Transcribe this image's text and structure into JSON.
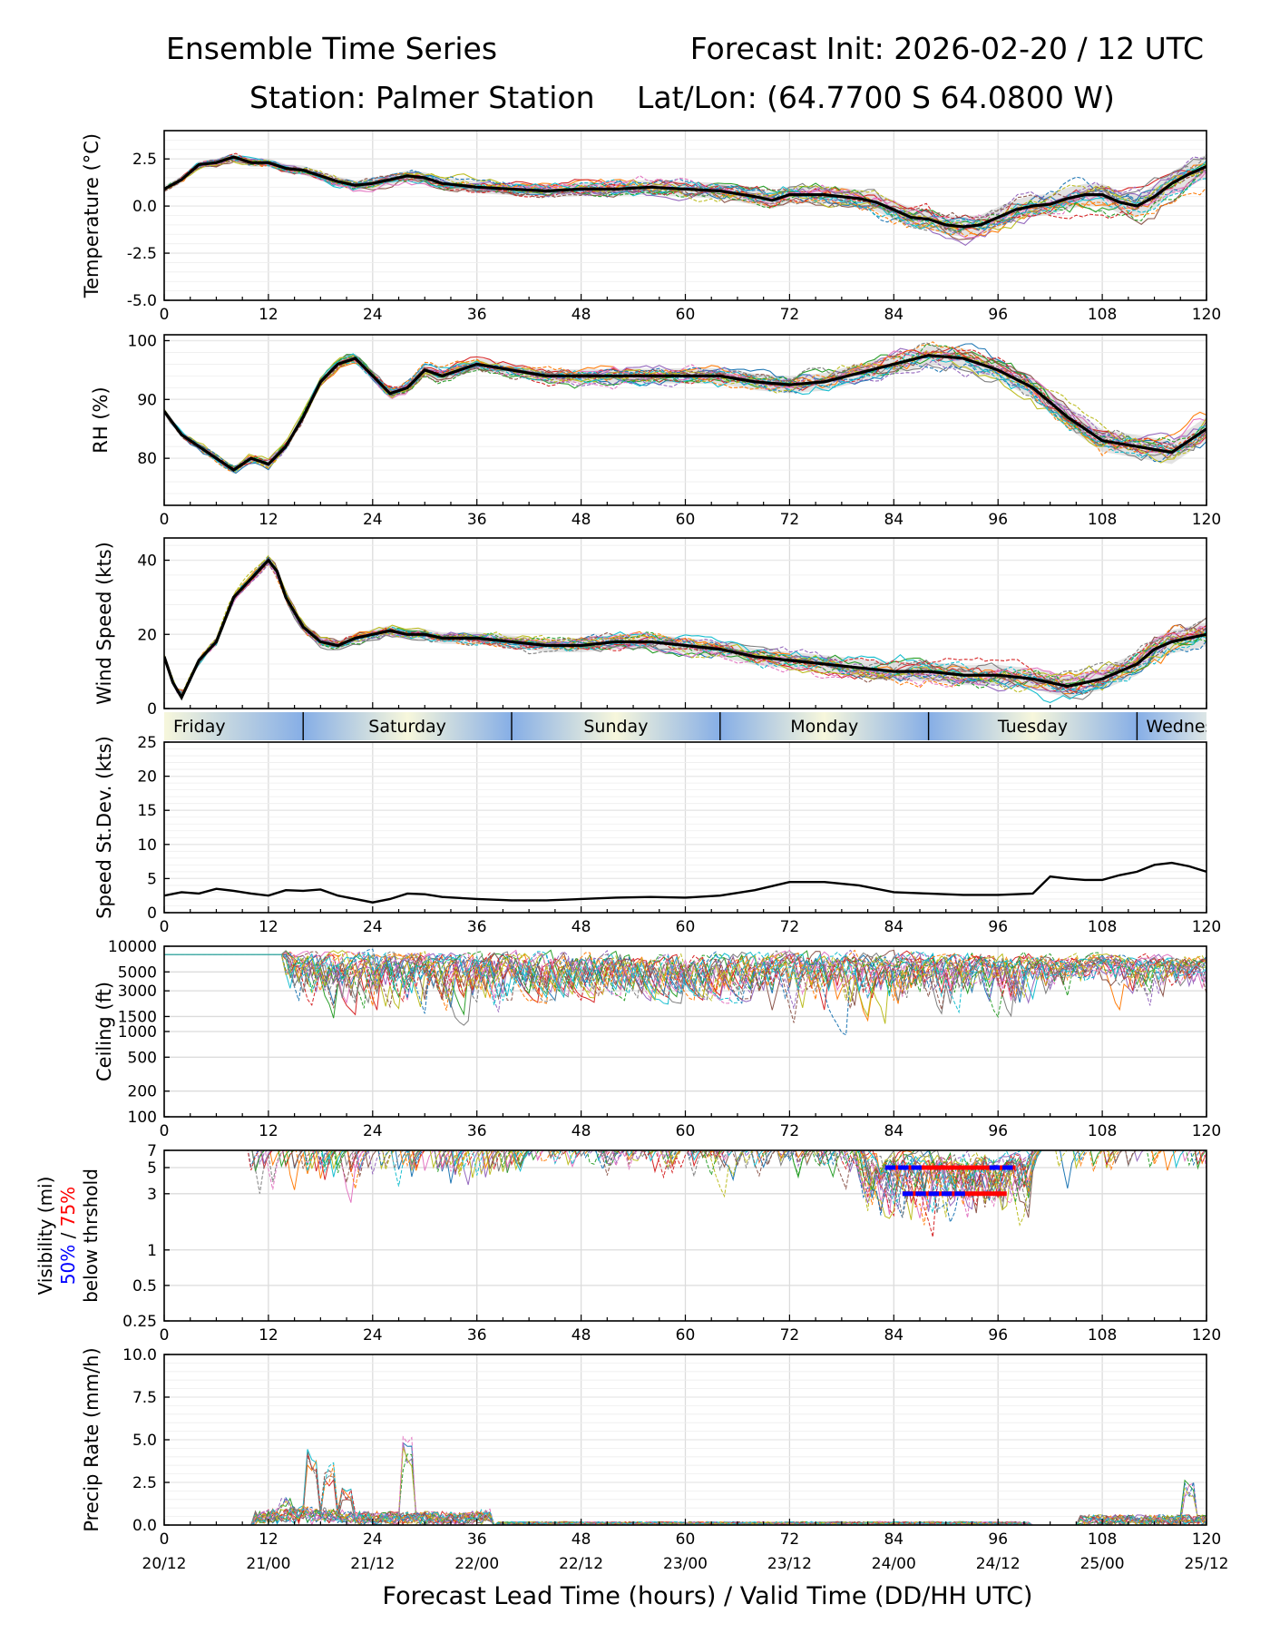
{
  "header": {
    "title_left": "Ensemble Time Series",
    "title_right": "Forecast Init: 2026-02-20 / 12 UTC",
    "station": "Station: Palmer Station",
    "latlon": "Lat/Lon: (64.7700 S 64.0800 W)"
  },
  "colors": {
    "mean": "#000000",
    "grid": "#dcdcdc",
    "spread": "#b0b0b0",
    "vis_50": "#0000ff",
    "vis_75": "#ff0000",
    "members": [
      "#1f77b4",
      "#ff7f0e",
      "#2ca02c",
      "#d62728",
      "#9467bd",
      "#8c564b",
      "#e377c2",
      "#7f7f7f",
      "#bcbd22",
      "#17becf"
    ]
  },
  "x_axis": {
    "label": "Forecast Lead Time (hours) / Valid Time (DD/HH UTC)",
    "ticks": [
      "0",
      "12",
      "24",
      "36",
      "48",
      "60",
      "72",
      "84",
      "96",
      "108",
      "120"
    ],
    "valid_times": [
      "20/12",
      "21/00",
      "21/12",
      "22/00",
      "22/12",
      "23/00",
      "23/12",
      "24/00",
      "24/12",
      "25/00",
      "25/12"
    ]
  },
  "day_band": {
    "labels": [
      "Friday",
      "Saturday",
      "Sunday",
      "Monday",
      "Tuesday",
      "Wednesday"
    ]
  },
  "chart_data": [
    {
      "id": "temperature",
      "type": "line",
      "ylabel": "Temperature (°C)",
      "ylim": [
        -5,
        4
      ],
      "yticks": [
        "-5.0",
        "-2.5",
        "0.0",
        "2.5"
      ],
      "ytick_values": [
        -5,
        -2.5,
        0,
        2.5
      ],
      "x": [
        0,
        2,
        4,
        6,
        8,
        10,
        12,
        14,
        16,
        18,
        20,
        22,
        24,
        26,
        28,
        30,
        32,
        36,
        40,
        44,
        48,
        52,
        56,
        60,
        64,
        68,
        70,
        72,
        76,
        80,
        82,
        84,
        86,
        88,
        90,
        92,
        94,
        96,
        98,
        100,
        102,
        104,
        106,
        108,
        110,
        112,
        114,
        116,
        118,
        120
      ],
      "mean": [
        0.9,
        1.4,
        2.2,
        2.3,
        2.6,
        2.3,
        2.3,
        2.0,
        1.9,
        1.6,
        1.3,
        1.1,
        1.2,
        1.4,
        1.6,
        1.5,
        1.2,
        1.0,
        0.9,
        0.8,
        0.9,
        0.9,
        1.0,
        0.9,
        0.8,
        0.5,
        0.3,
        0.6,
        0.6,
        0.4,
        0.2,
        -0.2,
        -0.6,
        -0.7,
        -1.0,
        -1.1,
        -1.0,
        -0.6,
        -0.2,
        0.0,
        0.1,
        0.4,
        0.6,
        0.6,
        0.2,
        0.0,
        0.5,
        1.2,
        1.7,
        2.1
      ],
      "member_count": 20
    },
    {
      "id": "rh",
      "type": "line",
      "ylabel": "RH (%)",
      "ylim": [
        72,
        101
      ],
      "yticks": [
        "80",
        "90",
        "100"
      ],
      "ytick_values": [
        80,
        90,
        100
      ],
      "x": [
        0,
        2,
        4,
        6,
        8,
        10,
        12,
        14,
        16,
        18,
        20,
        22,
        24,
        26,
        28,
        30,
        32,
        36,
        40,
        44,
        48,
        52,
        56,
        60,
        64,
        68,
        72,
        76,
        80,
        84,
        88,
        92,
        96,
        100,
        104,
        108,
        112,
        114,
        116,
        118,
        120
      ],
      "mean": [
        88,
        84,
        82,
        80,
        78,
        80,
        79,
        82,
        87,
        93,
        96,
        97,
        94,
        91,
        92,
        95,
        94,
        96,
        95,
        94,
        94,
        94,
        94,
        94,
        94,
        93,
        92.5,
        93,
        94.5,
        96,
        97.5,
        97,
        95,
        92,
        87,
        83,
        82,
        81.5,
        81,
        83,
        85
      ],
      "member_count": 20
    },
    {
      "id": "wind_speed",
      "type": "line",
      "ylabel": "Wind Speed (kts)",
      "ylim": [
        0,
        46
      ],
      "yticks": [
        "0",
        "20",
        "40"
      ],
      "ytick_values": [
        0,
        20,
        40
      ],
      "x": [
        0,
        1,
        2,
        3,
        4,
        6,
        8,
        10,
        12,
        13,
        14,
        16,
        18,
        20,
        22,
        24,
        26,
        28,
        30,
        32,
        36,
        40,
        44,
        48,
        52,
        56,
        60,
        64,
        68,
        72,
        76,
        80,
        84,
        88,
        92,
        96,
        100,
        104,
        108,
        112,
        114,
        116,
        118,
        120
      ],
      "mean": [
        14,
        7,
        3,
        8,
        13,
        18,
        30,
        35,
        40,
        37,
        30,
        22,
        18,
        17,
        19,
        20,
        21,
        20,
        20,
        19,
        19,
        18,
        17,
        17,
        18,
        18,
        17,
        16,
        14,
        13,
        12,
        11,
        10,
        10,
        9,
        9,
        8,
        6,
        8,
        12,
        16,
        18,
        19,
        20
      ],
      "member_count": 20
    },
    {
      "id": "speed_stdev",
      "type": "line",
      "ylabel": "Speed St.Dev. (kts)",
      "ylim": [
        0,
        25
      ],
      "yticks": [
        "0",
        "5",
        "10",
        "15",
        "20",
        "25"
      ],
      "ytick_values": [
        0,
        5,
        10,
        15,
        20,
        25
      ],
      "x": [
        0,
        2,
        4,
        6,
        8,
        10,
        12,
        14,
        16,
        18,
        20,
        22,
        24,
        26,
        28,
        30,
        32,
        36,
        40,
        44,
        48,
        52,
        56,
        60,
        64,
        68,
        72,
        76,
        80,
        84,
        88,
        92,
        96,
        100,
        102,
        104,
        106,
        108,
        110,
        112,
        114,
        116,
        118,
        120
      ],
      "values": [
        2.5,
        3.0,
        2.8,
        3.5,
        3.2,
        2.8,
        2.5,
        3.3,
        3.2,
        3.4,
        2.5,
        2.0,
        1.5,
        2.0,
        2.8,
        2.7,
        2.3,
        2.0,
        1.8,
        1.8,
        2.0,
        2.2,
        2.3,
        2.2,
        2.5,
        3.3,
        4.5,
        4.5,
        4.0,
        3.0,
        2.8,
        2.6,
        2.6,
        2.8,
        5.3,
        5.0,
        4.8,
        4.8,
        5.5,
        6.0,
        7.0,
        7.3,
        6.8,
        6.0
      ]
    },
    {
      "id": "ceiling",
      "type": "line",
      "scale": "log",
      "ylabel": "Ceiling (ft)",
      "ylim": [
        100,
        10000
      ],
      "yticks": [
        "100",
        "200",
        "500",
        "1000",
        "1500",
        "3000",
        "5000",
        "10000"
      ],
      "ytick_values": [
        100,
        200,
        500,
        1000,
        1500,
        3000,
        5000,
        10000
      ],
      "member_count": 20
    },
    {
      "id": "visibility",
      "type": "line",
      "scale": "log",
      "ylabel_line1": "Visibility (mi)",
      "ylabel_50": "50%",
      "ylabel_sep": " / ",
      "ylabel_75": "75%",
      "ylabel_line3": "below thrshold",
      "ylim": [
        0.25,
        7
      ],
      "yticks": [
        "0.25",
        "0.5",
        "1",
        "3",
        "5",
        "7"
      ],
      "ytick_values": [
        0.25,
        0.5,
        1,
        3,
        5,
        7
      ],
      "threshold_bars": [
        {
          "threshold_mi": 5,
          "from_hour": 83,
          "to_hour": 98
        },
        {
          "threshold_mi": 3,
          "from_hour": 85,
          "to_hour": 97
        }
      ],
      "member_count": 20
    },
    {
      "id": "precip_rate",
      "type": "line",
      "ylabel": "Precip Rate (mm/h)",
      "ylim": [
        0,
        10
      ],
      "yticks": [
        "0.0",
        "2.5",
        "5.0",
        "7.5",
        "10.0"
      ],
      "ytick_values": [
        0,
        2.5,
        5,
        7.5,
        10
      ],
      "member_count": 20
    }
  ]
}
